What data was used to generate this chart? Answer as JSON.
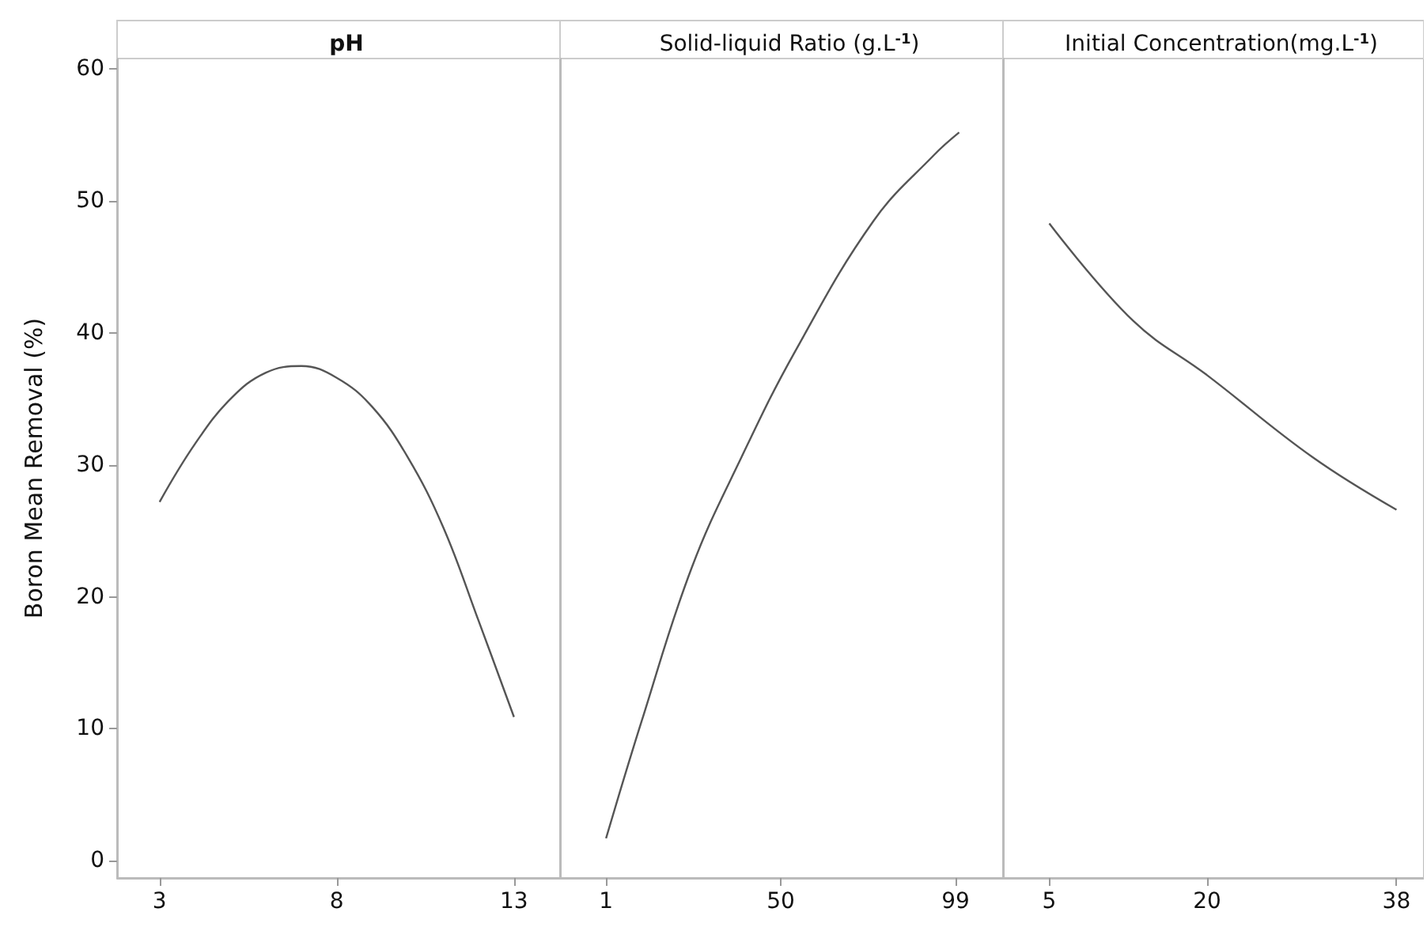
{
  "chart_data": [
    {
      "type": "line",
      "title": "pH",
      "ylabel": "Boron Mean Removal (%)",
      "marker": "none",
      "grid": false,
      "x": [
        3,
        4,
        5,
        6,
        7,
        8,
        9,
        10,
        11,
        12,
        13
      ],
      "series": [
        {
          "color": "#555555",
          "values": [
            27.2,
            31.6,
            35.0,
            37.0,
            37.5,
            36.6,
            34.4,
            30.6,
            25.3,
            18.2,
            10.9
          ]
        }
      ],
      "xlim": [
        1.8,
        14.3
      ],
      "xticks": [
        3,
        8,
        13
      ],
      "ylim": [
        -1.3,
        60.8
      ],
      "yticks": [
        0,
        10,
        20,
        30,
        40,
        50,
        60
      ]
    },
    {
      "type": "line",
      "title": "Solid-liquid Ratio (g.L$^{-1}$)",
      "marker": "none",
      "grid": false,
      "tick_labels": "x",
      "x": [
        1,
        11,
        25,
        39,
        54,
        76,
        93,
        100
      ],
      "series": [
        {
          "color": "#555555",
          "values": [
            1.7,
            10.6,
            22.2,
            30.6,
            38.6,
            48.5,
            53.5,
            55.2
          ]
        }
      ],
      "xlim": [
        -11.9,
        112.3
      ],
      "xticks": [
        1,
        50,
        99
      ],
      "ylim": [
        -1.3,
        60.8
      ],
      "yticks": [
        0,
        10,
        20,
        30,
        40,
        50,
        60
      ]
    },
    {
      "type": "line",
      "title": "Initial Concentration(mg.L$^{-1}$)",
      "marker": "none",
      "grid": false,
      "tick_labels": "x",
      "x": [
        5,
        13,
        20,
        30,
        38
      ],
      "series": [
        {
          "color": "#555555",
          "values": [
            48.3,
            40.9,
            36.8,
            30.6,
            26.6
          ]
        }
      ],
      "xlim": [
        0.6,
        40.6
      ],
      "xticks": [
        5,
        20,
        38
      ],
      "ylim": [
        -1.3,
        60.8
      ],
      "yticks": [
        0,
        10,
        20,
        30,
        40,
        50,
        60
      ]
    }
  ]
}
